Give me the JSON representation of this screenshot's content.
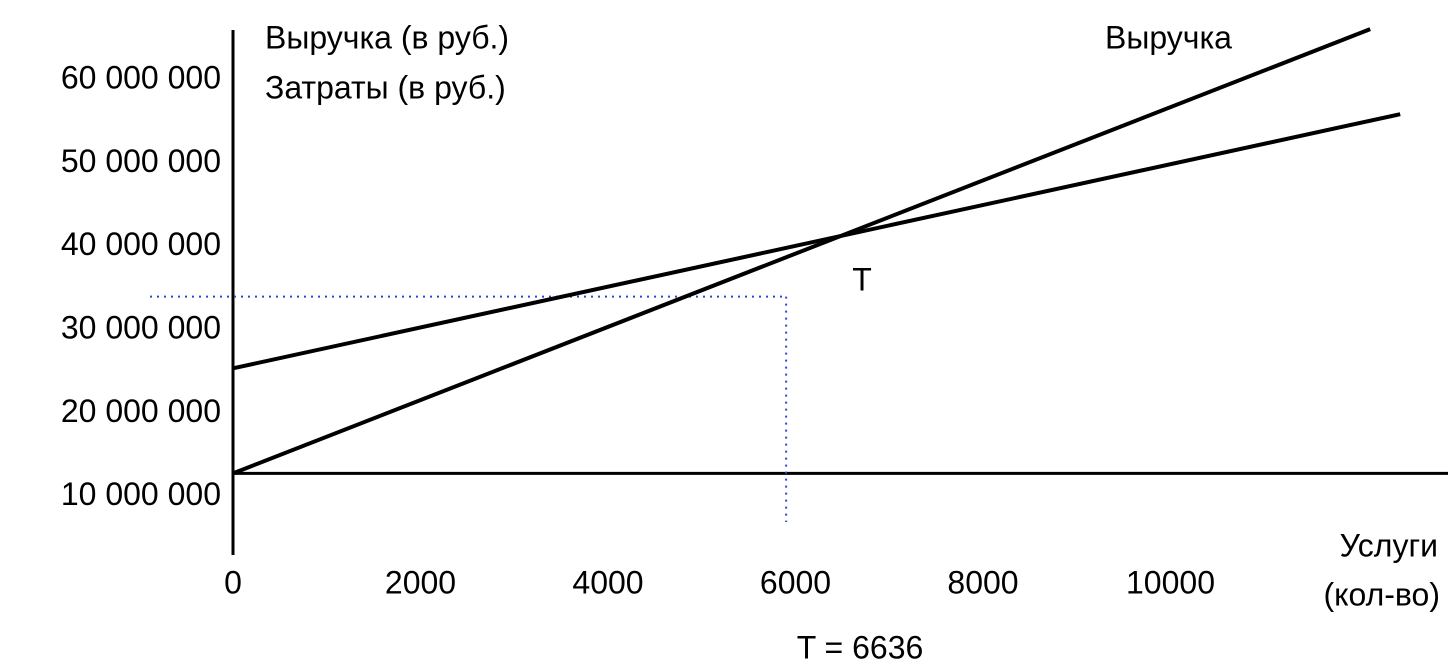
{
  "chart_data": {
    "type": "line",
    "y_label": [
      "Выручка (в руб.)",
      "Затраты (в руб.)"
    ],
    "x_label": [
      "Услуги",
      "(кол-во)"
    ],
    "annotations": [
      "T",
      "T = 6636"
    ],
    "series": [
      {
        "name": "Выручка",
        "color": "#000000",
        "x": [
          0,
          12130
        ],
        "values": [
          12800000,
          66100000
        ]
      },
      {
        "color": "#000000",
        "x": [
          0,
          12450
        ],
        "values": [
          25400000,
          55900000
        ]
      }
    ],
    "dotted_guide": {
      "x": 5900,
      "y": 34000000,
      "color": "#3344cc"
    },
    "xlim": [
      0,
      12960
    ],
    "ylim": [
      3000000,
      66000000
    ],
    "xticks": [
      0,
      2000,
      4000,
      6000,
      8000,
      10000
    ],
    "yticks": [
      {
        "value": 10000000,
        "label": "10 000 000"
      },
      {
        "value": 20000000,
        "label": "20 000 000"
      },
      {
        "value": 30000000,
        "label": "30 000 000"
      },
      {
        "value": 40000000,
        "label": "40 000 000"
      },
      {
        "value": 50000000,
        "label": "50 000 000"
      },
      {
        "value": 60000000,
        "label": "60 000 000"
      }
    ],
    "grid": false
  }
}
